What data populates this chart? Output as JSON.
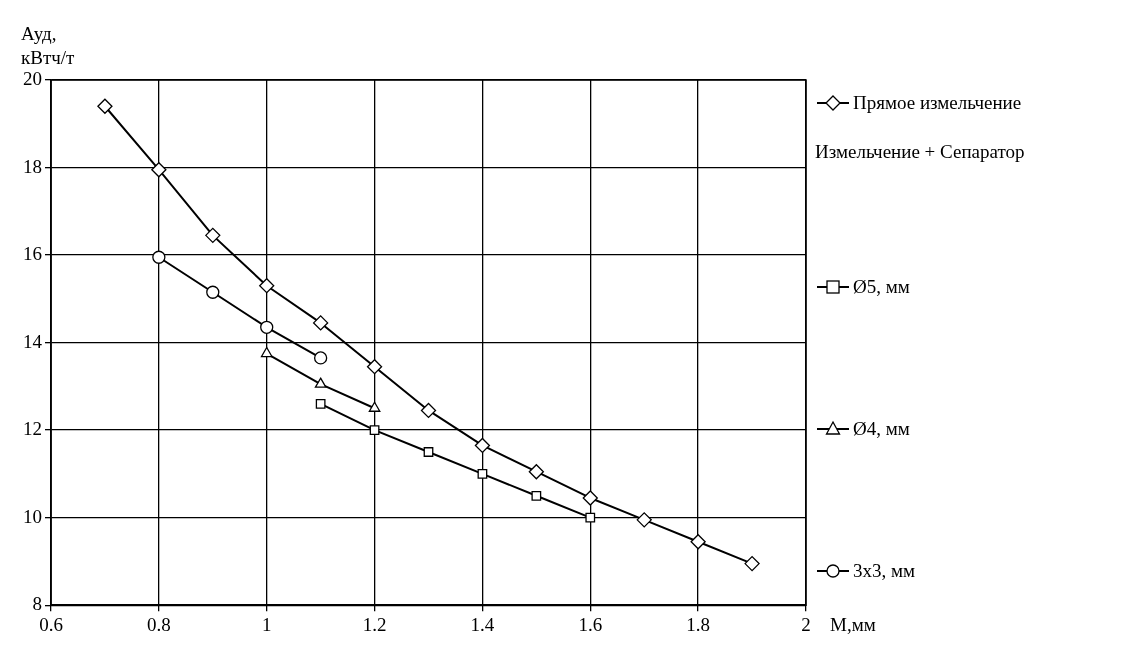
{
  "chart_data": {
    "type": "line",
    "xlabel": "М,мм",
    "ylabel": "Ауд,\nкВтч/т",
    "legend_title": "Измельчение + Сепаратор",
    "xlim": [
      0.6,
      2
    ],
    "xticks": [
      0.6,
      0.8,
      1,
      1.2,
      1.4,
      1.6,
      1.8,
      2
    ],
    "ylim": [
      8,
      20
    ],
    "yticks": [
      8,
      10,
      12,
      14,
      16,
      18,
      20
    ],
    "grid": true,
    "legend": "right",
    "line_style": "solid",
    "series": [
      {
        "name": "Прямое измельчение",
        "color": "#000000",
        "marker": "diamond",
        "x": [
          0.7,
          0.8,
          0.9,
          1,
          1.1,
          1.2,
          1.3,
          1.4,
          1.5,
          1.6,
          1.7,
          1.8,
          1.9
        ],
        "values": [
          19.4,
          17.95,
          16.45,
          15.3,
          14.45,
          13.45,
          12.45,
          11.65,
          11.05,
          10.45,
          9.95,
          9.45,
          8.95
        ]
      },
      {
        "name": "Ø5, мм",
        "color": "#000000",
        "marker": "square",
        "x": [
          1.1,
          1.2,
          1.3,
          1.4,
          1.5,
          1.6
        ],
        "values": [
          12.6,
          12.0,
          11.5,
          11.0,
          10.5,
          10.0
        ]
      },
      {
        "name": "Ø4, мм",
        "color": "#000000",
        "marker": "triangle",
        "x": [
          1,
          1.1,
          1.2
        ],
        "values": [
          13.75,
          13.05,
          12.5
        ]
      },
      {
        "name": "3x3, мм",
        "color": "#000000",
        "marker": "circle",
        "x": [
          0.8,
          0.9,
          1,
          1.1
        ],
        "values": [
          15.95,
          15.15,
          14.35,
          13.65
        ]
      }
    ]
  }
}
